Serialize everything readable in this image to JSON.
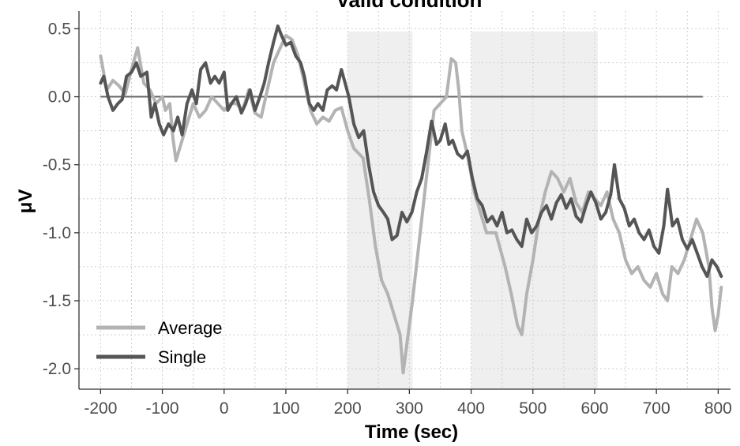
{
  "chart_data": {
    "type": "line",
    "title": "Valid condition",
    "xlabel": "Time (sec)",
    "ylabel": "μV",
    "xlim": [
      -235,
      820
    ],
    "ylim": [
      -2.15,
      0.63
    ],
    "x_ticks": [
      -200,
      -100,
      0,
      100,
      200,
      300,
      400,
      500,
      600,
      700,
      800
    ],
    "x_tick_labels": [
      "-200",
      "-100",
      "0",
      "100",
      "200",
      "300",
      "400",
      "500",
      "600",
      "700",
      "800"
    ],
    "y_ticks": [
      0.5,
      0.0,
      -0.5,
      -1.0,
      -1.5,
      -2.0
    ],
    "y_tick_labels": [
      "0.5",
      "0.0",
      "-0.5",
      "-1.0",
      "-1.5",
      "-2.0"
    ],
    "grid": true,
    "legend_position": "bottom-left",
    "shaded_intervals": [
      [
        200,
        305
      ],
      [
        400,
        605
      ]
    ],
    "reference_line": {
      "y": 0.0,
      "x_range": [
        -200,
        775
      ],
      "color": "#666666"
    },
    "series": [
      {
        "name": "Average",
        "color": "#b3b3b3",
        "points": [
          [
            -200,
            0.3
          ],
          [
            -190,
            0.05
          ],
          [
            -180,
            0.12
          ],
          [
            -170,
            0.08
          ],
          [
            -160,
            0.02
          ],
          [
            -150,
            0.2
          ],
          [
            -140,
            0.36
          ],
          [
            -130,
            0.1
          ],
          [
            -120,
            0.05
          ],
          [
            -110,
            -0.05
          ],
          [
            -100,
            0.0
          ],
          [
            -95,
            -0.1
          ],
          [
            -88,
            -0.05
          ],
          [
            -83,
            -0.3
          ],
          [
            -78,
            -0.47
          ],
          [
            -70,
            -0.35
          ],
          [
            -60,
            -0.2
          ],
          [
            -50,
            -0.05
          ],
          [
            -40,
            -0.15
          ],
          [
            -30,
            -0.1
          ],
          [
            -20,
            0.0
          ],
          [
            -10,
            -0.05
          ],
          [
            0,
            -0.1
          ],
          [
            10,
            -0.05
          ],
          [
            20,
            -0.05
          ],
          [
            30,
            -0.1
          ],
          [
            40,
            0.05
          ],
          [
            50,
            -0.12
          ],
          [
            60,
            -0.15
          ],
          [
            70,
            0.05
          ],
          [
            80,
            0.25
          ],
          [
            90,
            0.35
          ],
          [
            100,
            0.45
          ],
          [
            110,
            0.42
          ],
          [
            120,
            0.3
          ],
          [
            130,
            0.1
          ],
          [
            140,
            -0.1
          ],
          [
            150,
            -0.2
          ],
          [
            160,
            -0.15
          ],
          [
            170,
            -0.18
          ],
          [
            180,
            -0.1
          ],
          [
            190,
            -0.08
          ],
          [
            200,
            -0.25
          ],
          [
            210,
            -0.38
          ],
          [
            225,
            -0.45
          ],
          [
            235,
            -0.75
          ],
          [
            245,
            -1.1
          ],
          [
            255,
            -1.35
          ],
          [
            265,
            -1.45
          ],
          [
            275,
            -1.6
          ],
          [
            285,
            -1.75
          ],
          [
            290,
            -2.03
          ],
          [
            295,
            -1.85
          ],
          [
            305,
            -1.5
          ],
          [
            315,
            -1.1
          ],
          [
            325,
            -0.7
          ],
          [
            335,
            -0.3
          ],
          [
            340,
            -0.1
          ],
          [
            350,
            -0.05
          ],
          [
            360,
            0.0
          ],
          [
            368,
            0.28
          ],
          [
            375,
            0.25
          ],
          [
            380,
            0.05
          ],
          [
            385,
            -0.25
          ],
          [
            395,
            -0.45
          ],
          [
            405,
            -0.7
          ],
          [
            415,
            -0.85
          ],
          [
            425,
            -1.0
          ],
          [
            440,
            -1.0
          ],
          [
            455,
            -1.25
          ],
          [
            465,
            -1.45
          ],
          [
            475,
            -1.68
          ],
          [
            482,
            -1.75
          ],
          [
            490,
            -1.45
          ],
          [
            500,
            -1.2
          ],
          [
            510,
            -0.9
          ],
          [
            520,
            -0.7
          ],
          [
            530,
            -0.55
          ],
          [
            540,
            -0.6
          ],
          [
            550,
            -0.7
          ],
          [
            560,
            -0.6
          ],
          [
            570,
            -0.78
          ],
          [
            580,
            -0.85
          ],
          [
            590,
            -0.7
          ],
          [
            600,
            -0.75
          ],
          [
            610,
            -0.8
          ],
          [
            620,
            -0.7
          ],
          [
            630,
            -0.9
          ],
          [
            640,
            -1.0
          ],
          [
            650,
            -1.2
          ],
          [
            660,
            -1.3
          ],
          [
            670,
            -1.25
          ],
          [
            680,
            -1.35
          ],
          [
            690,
            -1.4
          ],
          [
            700,
            -1.3
          ],
          [
            710,
            -1.45
          ],
          [
            718,
            -1.5
          ],
          [
            725,
            -1.25
          ],
          [
            735,
            -1.3
          ],
          [
            745,
            -1.2
          ],
          [
            755,
            -1.05
          ],
          [
            765,
            -0.9
          ],
          [
            775,
            -1.0
          ],
          [
            785,
            -1.25
          ],
          [
            790,
            -1.55
          ],
          [
            795,
            -1.72
          ],
          [
            800,
            -1.6
          ],
          [
            805,
            -1.4
          ]
        ]
      },
      {
        "name": "Single",
        "color": "#555555",
        "points": [
          [
            -200,
            0.1
          ],
          [
            -195,
            0.15
          ],
          [
            -188,
            0.0
          ],
          [
            -180,
            -0.1
          ],
          [
            -172,
            -0.05
          ],
          [
            -165,
            -0.02
          ],
          [
            -158,
            0.15
          ],
          [
            -150,
            0.18
          ],
          [
            -142,
            0.25
          ],
          [
            -135,
            0.15
          ],
          [
            -125,
            0.18
          ],
          [
            -118,
            -0.15
          ],
          [
            -112,
            -0.05
          ],
          [
            -105,
            -0.2
          ],
          [
            -98,
            -0.28
          ],
          [
            -90,
            -0.2
          ],
          [
            -82,
            -0.25
          ],
          [
            -75,
            -0.15
          ],
          [
            -68,
            -0.28
          ],
          [
            -60,
            -0.05
          ],
          [
            -52,
            0.05
          ],
          [
            -45,
            -0.05
          ],
          [
            -38,
            0.2
          ],
          [
            -30,
            0.25
          ],
          [
            -22,
            0.1
          ],
          [
            -15,
            0.15
          ],
          [
            -8,
            0.1
          ],
          [
            0,
            0.18
          ],
          [
            6,
            -0.1
          ],
          [
            12,
            -0.05
          ],
          [
            20,
            0.0
          ],
          [
            28,
            -0.12
          ],
          [
            35,
            -0.05
          ],
          [
            42,
            0.05
          ],
          [
            50,
            -0.1
          ],
          [
            58,
            0.0
          ],
          [
            65,
            0.1
          ],
          [
            72,
            0.25
          ],
          [
            80,
            0.4
          ],
          [
            87,
            0.52
          ],
          [
            93,
            0.45
          ],
          [
            100,
            0.38
          ],
          [
            108,
            0.4
          ],
          [
            116,
            0.3
          ],
          [
            124,
            0.25
          ],
          [
            130,
            0.15
          ],
          [
            138,
            -0.05
          ],
          [
            145,
            -0.1
          ],
          [
            152,
            -0.05
          ],
          [
            160,
            -0.1
          ],
          [
            167,
            0.05
          ],
          [
            175,
            0.08
          ],
          [
            182,
            0.05
          ],
          [
            190,
            0.2
          ],
          [
            196,
            0.1
          ],
          [
            202,
            0.0
          ],
          [
            210,
            -0.2
          ],
          [
            218,
            -0.3
          ],
          [
            226,
            -0.25
          ],
          [
            234,
            -0.5
          ],
          [
            242,
            -0.7
          ],
          [
            250,
            -0.8
          ],
          [
            258,
            -0.85
          ],
          [
            265,
            -0.9
          ],
          [
            272,
            -1.05
          ],
          [
            280,
            -1.02
          ],
          [
            288,
            -0.85
          ],
          [
            296,
            -0.92
          ],
          [
            304,
            -0.85
          ],
          [
            312,
            -0.7
          ],
          [
            320,
            -0.6
          ],
          [
            328,
            -0.4
          ],
          [
            336,
            -0.18
          ],
          [
            344,
            -0.35
          ],
          [
            350,
            -0.32
          ],
          [
            358,
            -0.2
          ],
          [
            364,
            -0.35
          ],
          [
            370,
            -0.32
          ],
          [
            378,
            -0.42
          ],
          [
            386,
            -0.45
          ],
          [
            394,
            -0.4
          ],
          [
            402,
            -0.6
          ],
          [
            410,
            -0.75
          ],
          [
            418,
            -0.8
          ],
          [
            426,
            -0.92
          ],
          [
            434,
            -0.88
          ],
          [
            442,
            -0.95
          ],
          [
            450,
            -0.85
          ],
          [
            458,
            -1.0
          ],
          [
            466,
            -0.98
          ],
          [
            474,
            -1.05
          ],
          [
            482,
            -1.1
          ],
          [
            490,
            -0.9
          ],
          [
            498,
            -1.0
          ],
          [
            506,
            -0.95
          ],
          [
            514,
            -0.85
          ],
          [
            522,
            -0.8
          ],
          [
            530,
            -0.9
          ],
          [
            538,
            -0.78
          ],
          [
            546,
            -0.72
          ],
          [
            554,
            -0.82
          ],
          [
            562,
            -0.75
          ],
          [
            570,
            -0.88
          ],
          [
            578,
            -0.92
          ],
          [
            586,
            -0.8
          ],
          [
            594,
            -0.7
          ],
          [
            602,
            -0.78
          ],
          [
            610,
            -0.9
          ],
          [
            618,
            -0.85
          ],
          [
            626,
            -0.72
          ],
          [
            632,
            -0.5
          ],
          [
            640,
            -0.75
          ],
          [
            648,
            -0.82
          ],
          [
            656,
            -0.95
          ],
          [
            664,
            -0.9
          ],
          [
            672,
            -1.0
          ],
          [
            680,
            -1.05
          ],
          [
            688,
            -0.98
          ],
          [
            696,
            -1.1
          ],
          [
            704,
            -1.15
          ],
          [
            712,
            -0.95
          ],
          [
            718,
            -0.68
          ],
          [
            726,
            -0.95
          ],
          [
            734,
            -0.9
          ],
          [
            742,
            -1.05
          ],
          [
            750,
            -1.12
          ],
          [
            758,
            -1.05
          ],
          [
            766,
            -1.15
          ],
          [
            774,
            -1.25
          ],
          [
            782,
            -1.32
          ],
          [
            790,
            -1.2
          ],
          [
            798,
            -1.25
          ],
          [
            805,
            -1.32
          ]
        ]
      }
    ]
  }
}
